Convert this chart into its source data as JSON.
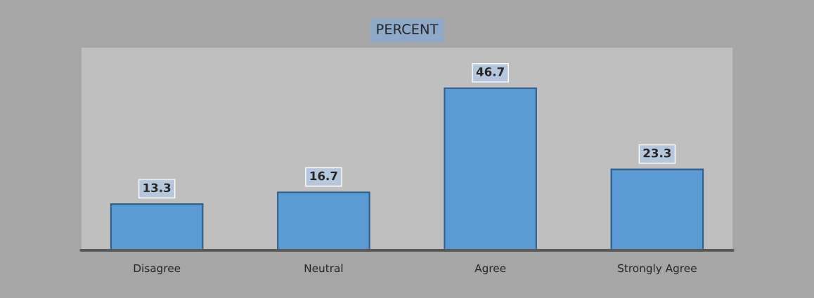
{
  "chart_data": {
    "type": "bar",
    "title": "PERCENT",
    "categories": [
      "Disagree",
      "Neutral",
      "Agree",
      "Strongly Agree"
    ],
    "values": [
      13.3,
      16.7,
      46.7,
      23.3
    ],
    "color": "#5b9bd5",
    "data_labels": true
  }
}
